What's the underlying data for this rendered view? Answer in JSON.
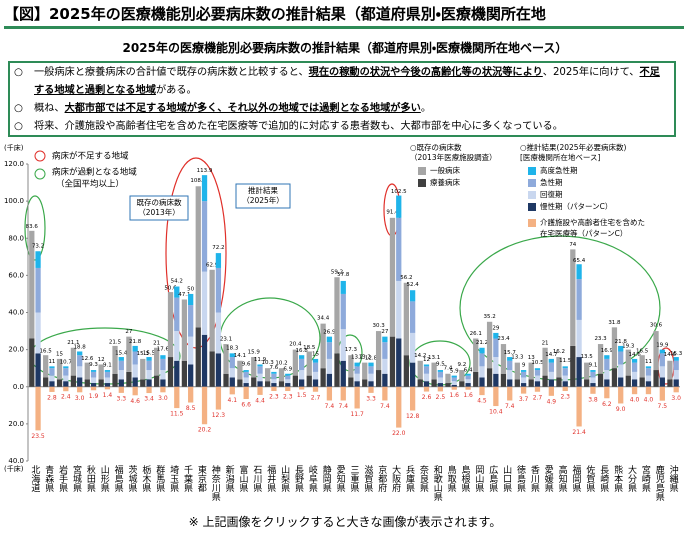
{
  "header": {
    "title": "【図】2025年の医療機能別必要病床数の推計結果（都道府県別・医療機関所在地"
  },
  "bullets": [
    [
      {
        "text": "一般病床と療養病床の合計値で既存の病床数と比較すると、"
      },
      {
        "text": "現在の稼動の状況や今後の高齢化等の状況等により",
        "underline": true
      },
      {
        "text": "、2025年に向けて、"
      },
      {
        "text": "不足する地域と過剰となる地域",
        "underline": true
      },
      {
        "text": "がある。"
      }
    ],
    [
      {
        "text": "概ね、"
      },
      {
        "text": "大都市部では不足する地域が多く、それ以外の地域では過剰となる地域が多い",
        "underline": true
      },
      {
        "text": "。"
      }
    ],
    [
      {
        "text": "将来、介護施設や高齢者住宅を含めた在宅医療等で追加的に対応する患者数も、大都市部を中心に多くなっている。"
      }
    ]
  ],
  "footer": "※ 上記画像をクリックすると大きな画像が表示されます。",
  "chart_data": {
    "type": "bar",
    "title": "2025年の医療機能別必要病床数の推計結果（都道府県別・医療機関所在地ベース）",
    "y_unit": "(千床)",
    "categories": [
      "北海道",
      "青森県",
      "岩手県",
      "宮城県",
      "秋田県",
      "山形県",
      "福島県",
      "茨城県",
      "栃木県",
      "群馬県",
      "埼玉県",
      "千葉県",
      "東京都",
      "神奈川県",
      "新潟県",
      "富山県",
      "石川県",
      "福井県",
      "山梨県",
      "長野県",
      "岐阜県",
      "静岡県",
      "愛知県",
      "三重県",
      "滋賀県",
      "京都府",
      "大阪府",
      "兵庫県",
      "奈良県",
      "和歌山県",
      "鳥取県",
      "島根県",
      "岡山県",
      "広島県",
      "山口県",
      "徳島県",
      "香川県",
      "愛媛県",
      "高知県",
      "福岡県",
      "佐賀県",
      "長崎県",
      "熊本県",
      "大分県",
      "宮崎県",
      "鹿児島県",
      "沖縄県"
    ],
    "ylim": [
      -40,
      120
    ],
    "yticks": [
      {
        "value": -40,
        "label": "40.0"
      },
      {
        "value": -20,
        "label": "20.0"
      },
      {
        "value": 0,
        "label": "0.0"
      },
      {
        "value": 20,
        "label": "20.0"
      },
      {
        "value": 40,
        "label": "40.0"
      },
      {
        "value": 60,
        "label": "60.0"
      },
      {
        "value": 80,
        "label": "80.0"
      },
      {
        "value": 100,
        "label": "100.0"
      },
      {
        "value": 120,
        "label": "120.0"
      }
    ],
    "groups": [
      {
        "name_lines": [
          "○既存の病床数",
          "（2013年医療施設調査）"
        ],
        "totals": [
          83.6,
          16.5,
          15.0,
          21.1,
          12.6,
          12.0,
          21.5,
          27.0,
          15.3,
          21.0,
          50.6,
          47.1,
          108.3,
          62.9,
          23.1,
          14.1,
          15.9,
          10.3,
          10.2,
          20.4,
          18.5,
          34.4,
          59.2,
          17.3,
          13.2,
          30.3,
          91.4,
          56.2,
          14.2,
          13.1,
          7.4,
          9.2,
          26.1,
          35.2,
          23.4,
          13.3,
          13.0,
          21.0,
          16.2,
          74.0,
          13.5,
          23.3,
          31.8,
          19.3,
          16.5,
          30.6,
          14.6
        ],
        "series": [
          {
            "name": "療養病床",
            "color": "#404040",
            "values": [
              26,
              5,
              4,
              6,
              4,
              4,
              7,
              8,
              4,
              6,
              16,
              14,
              32,
              19,
              7,
              4,
              5,
              3,
              3,
              6,
              6,
              10,
              18,
              5,
              4,
              9,
              27,
              17,
              4,
              4,
              2,
              3,
              8,
              10,
              7,
              4,
              4,
              6,
              5,
              22,
              4,
              7,
              10,
              6,
              5,
              9,
              4
            ]
          },
          {
            "name": "一般病床",
            "color": "#a6a6a6",
            "values": [
              58,
              12,
              11,
              15,
              9,
              8,
              15,
              19,
              11,
              15,
              35,
              33,
              76,
              44,
              16,
              10,
              11,
              7,
              7,
              14,
              13,
              24,
              41,
              12,
              9,
              21,
              64,
              39,
              10,
              9,
              5,
              6,
              18,
              25,
              16,
              9,
              9,
              15,
              11,
              52,
              9,
              16,
              22,
              14,
              12,
              21,
              10
            ]
          }
        ]
      },
      {
        "name_lines": [
          "○推計結果(2025年必要病床数)",
          "[医療機関所在地ベース]"
        ],
        "totals": [
          73.2,
          11.0,
          10.7,
          18.8,
          9.3,
          9.1,
          15.4,
          21.8,
          15.5,
          17.6,
          54.2,
          50.0,
          113.9,
          72.2,
          18.3,
          9.6,
          11.9,
          7.6,
          6.9,
          16.8,
          15.0,
          26.9,
          57.8,
          13.2,
          12.8,
          27.0,
          102.5,
          52.4,
          12.0,
          9.5,
          5.9,
          6.4,
          21.2,
          29.0,
          15.7,
          9.0,
          10.5,
          14.7,
          11.5,
          65.4,
          9.1,
          16.9,
          21.8,
          14.6,
          11.0,
          19.9,
          15.3
        ],
        "series": [
          {
            "name": "慢性期（パターンC）",
            "color": "#1f3864",
            "values": [
              18,
              3,
              3,
              5,
              2,
              2,
              4,
              5,
              4,
              4,
              14,
              12,
              28,
              18,
              5,
              2,
              3,
              2,
              2,
              4,
              4,
              7,
              14,
              3,
              3,
              7,
              26,
              13,
              3,
              2,
              1,
              2,
              5,
              7,
              4,
              2,
              3,
              4,
              3,
              16,
              2,
              4,
              5,
              4,
              3,
              5,
              4
            ]
          },
          {
            "name": "回復期",
            "color": "#c9d7ef",
            "values": [
              22,
              3,
              3,
              6,
              3,
              3,
              5,
              7,
              5,
              5,
              16,
              15,
              34,
              22,
              5,
              3,
              4,
              2,
              2,
              5,
              4,
              8,
              17,
              4,
              4,
              8,
              31,
              16,
              4,
              3,
              2,
              2,
              6,
              9,
              5,
              3,
              3,
              4,
              3,
              20,
              3,
              5,
              7,
              4,
              3,
              6,
              5
            ]
          },
          {
            "name": "急性期",
            "color": "#8eaadb",
            "values": [
              24,
              4,
              4,
              6,
              3,
              3,
              5,
              7,
              5,
              6,
              18,
              17,
              38,
              24,
              6,
              3,
              4,
              3,
              2,
              6,
              5,
              9,
              19,
              4,
              4,
              9,
              34,
              17,
              4,
              3,
              2,
              2,
              7,
              10,
              5,
              3,
              3,
              5,
              4,
              22,
              3,
              6,
              7,
              5,
              4,
              7,
              5
            ]
          },
          {
            "name": "高度急性期",
            "color": "#1fb4ea",
            "values": [
              9,
              1,
              1,
              2,
              1,
              1,
              2,
              3,
              2,
              2,
              6,
              6,
              14,
              8,
              2,
              1,
              1,
              1,
              1,
              2,
              2,
              3,
              7,
              2,
              2,
              3,
              12,
              6,
              1,
              1,
              1,
              1,
              3,
              3,
              2,
              1,
              1,
              2,
              1,
              8,
              1,
              2,
              3,
              2,
              1,
              2,
              2
            ]
          }
        ]
      }
    ],
    "care": {
      "name_lines": [
        "介護施設や高齢者住宅を含めた",
        "在宅医療等（パターンC）"
      ],
      "color": "#f4b183",
      "label_color": "#e0302a",
      "values": [
        -23.5,
        -2.8,
        -2.4,
        -3.0,
        -1.9,
        -1.4,
        -3.3,
        -4.6,
        -3.4,
        -3.0,
        -11.5,
        -8.5,
        -20.2,
        -12.3,
        -4.1,
        -6.6,
        -4.4,
        -2.3,
        -2.3,
        -1.5,
        -2.7,
        -7.4,
        -7.4,
        -11.7,
        -3.3,
        -7.4,
        -22.0,
        -12.8,
        -2.6,
        -2.5,
        -1.6,
        -1.6,
        -4.5,
        -10.4,
        -7.4,
        -3.7,
        -2.7,
        -4.9,
        -2.3,
        -21.4,
        -3.8,
        -6.2,
        -9.0,
        -4.0,
        -4.0,
        -7.5,
        -3.0
      ],
      "value_labels": [
        "23.5",
        "2.8",
        "2.4",
        "3.0",
        "1.9",
        "1.4",
        "3.3",
        "4.6",
        "3.4",
        "3.0",
        "11.5",
        "8.5",
        "20.2",
        "12.3",
        "4.1",
        "6.6",
        "4.4",
        "2.3",
        "2.3",
        "1.5",
        "2.7",
        "7.4",
        "7.4",
        "11.7",
        "3.3",
        "7.4",
        "22.0",
        "12.8",
        "2.6",
        "2.5",
        "1.6",
        "1.6",
        "4.5",
        "10.4",
        "7.4",
        "3.7",
        "2.7",
        "4.9",
        "2.3",
        "21.4",
        "3.8",
        "6.2",
        "9.0",
        "4.0",
        "4.0",
        "7.5",
        "3.0"
      ]
    },
    "annotations": {
      "shortage": "病床が不足する地域",
      "surplus": "病床が過剰となる地域",
      "surplus_note": "（全国平均以上）",
      "existing_box": [
        "既存の病床数",
        "（2013年）"
      ],
      "estimate_box": [
        "推計結果",
        "（2025年）"
      ]
    }
  }
}
